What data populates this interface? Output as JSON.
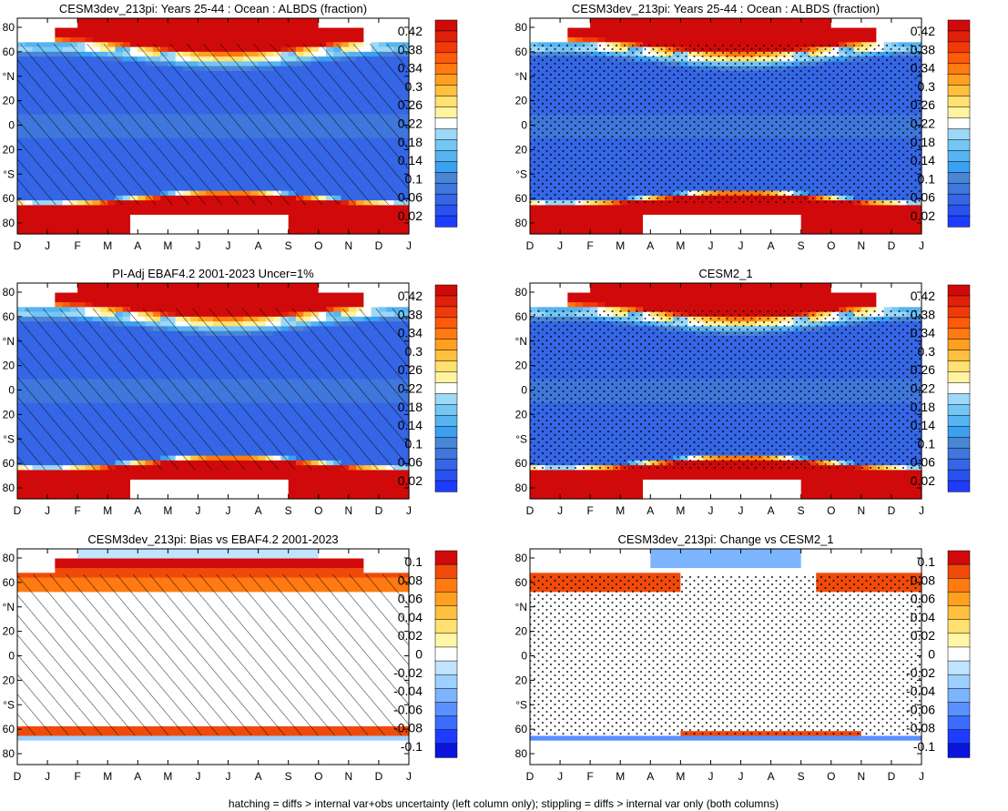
{
  "figure": {
    "footnote": "hatching = diffs > internal var+obs uncertainty (left column only); stippling = diffs > internal var only (both columns)"
  },
  "colors": {
    "abs_scale": [
      "#1e3cff",
      "#2a52f0",
      "#3566e6",
      "#3f77dc",
      "#4a86d6",
      "#3aa0f0",
      "#56b4f0",
      "#74c6f4",
      "#9dd8f8",
      "#ffffff",
      "#fff3a0",
      "#ffe070",
      "#ffc040",
      "#ffa020",
      "#ff7a10",
      "#ff5a0a",
      "#f03a0a",
      "#e0200a",
      "#d00a0a"
    ],
    "diff_scale": [
      "#0a14dc",
      "#1e3cff",
      "#3a6cff",
      "#5a90ff",
      "#7cb4ff",
      "#9ed0ff",
      "#c0e4ff",
      "#ffffff",
      "#fff6a8",
      "#ffe070",
      "#ffc040",
      "#ffa020",
      "#ff7a10",
      "#f04a0a",
      "#d00a0a"
    ]
  },
  "chart_data": [
    {
      "type": "heatmap",
      "title": "CESM3dev_213pi: Years 25-44 : Ocean : ALBDS (fraction)",
      "kind": "abs",
      "overlay": "hatch",
      "x_ticks": [
        "D",
        "J",
        "F",
        "M",
        "A",
        "M",
        "J",
        "J",
        "A",
        "S",
        "O",
        "N",
        "D",
        "J"
      ],
      "y_ticks": [
        "80",
        "60",
        "°N",
        "20",
        "0",
        "20",
        "°S",
        "60",
        "80"
      ],
      "colorbar_ticks": [
        "0.42",
        "0.38",
        "0.34",
        "0.3",
        "0.26",
        "0.22",
        "0.18",
        "0.14",
        "0.1",
        "0.06",
        "0.02"
      ],
      "colorbar_range": [
        0.0,
        0.44
      ],
      "description_values": {
        "tropics": 0.07,
        "subtropics": 0.06,
        "polar": 0.44
      }
    },
    {
      "type": "heatmap",
      "title": "CESM3dev_213pi: Years 25-44 : Ocean : ALBDS (fraction)",
      "kind": "abs",
      "overlay": "stipple",
      "x_ticks": [
        "D",
        "J",
        "F",
        "M",
        "A",
        "M",
        "J",
        "J",
        "A",
        "S",
        "O",
        "N",
        "D",
        "J"
      ],
      "y_ticks": [
        "80",
        "60",
        "°N",
        "20",
        "0",
        "20",
        "°S",
        "60",
        "80"
      ],
      "colorbar_ticks": [
        "0.42",
        "0.38",
        "0.34",
        "0.3",
        "0.26",
        "0.22",
        "0.18",
        "0.14",
        "0.1",
        "0.06",
        "0.02"
      ],
      "colorbar_range": [
        0.0,
        0.44
      ]
    },
    {
      "type": "heatmap",
      "title": "PI-Adj EBAF4.2 2001-2023 Uncer=1%",
      "kind": "abs",
      "overlay": "hatch",
      "x_ticks": [
        "D",
        "J",
        "F",
        "M",
        "A",
        "M",
        "J",
        "J",
        "A",
        "S",
        "O",
        "N",
        "D",
        "J"
      ],
      "y_ticks": [
        "80",
        "60",
        "°N",
        "20",
        "0",
        "20",
        "°S",
        "60",
        "80"
      ],
      "colorbar_ticks": [
        "0.42",
        "0.38",
        "0.34",
        "0.3",
        "0.26",
        "0.22",
        "0.18",
        "0.14",
        "0.1",
        "0.06",
        "0.02"
      ],
      "colorbar_range": [
        0.0,
        0.44
      ]
    },
    {
      "type": "heatmap",
      "title": "CESM2_1",
      "kind": "abs",
      "overlay": "stipple",
      "x_ticks": [
        "D",
        "J",
        "F",
        "M",
        "A",
        "M",
        "J",
        "J",
        "A",
        "S",
        "O",
        "N",
        "D",
        "J"
      ],
      "y_ticks": [
        "80",
        "60",
        "°N",
        "20",
        "0",
        "20",
        "°S",
        "60",
        "80"
      ],
      "colorbar_ticks": [
        "0.42",
        "0.38",
        "0.34",
        "0.3",
        "0.26",
        "0.22",
        "0.18",
        "0.14",
        "0.1",
        "0.06",
        "0.02"
      ],
      "colorbar_range": [
        0.0,
        0.44
      ]
    },
    {
      "type": "heatmap",
      "title": "CESM3dev_213pi: Bias vs EBAF4.2 2001-2023",
      "kind": "diff",
      "overlay": "hatch",
      "x_ticks": [
        "D",
        "J",
        "F",
        "M",
        "A",
        "M",
        "J",
        "J",
        "A",
        "S",
        "O",
        "N",
        "D",
        "J"
      ],
      "y_ticks": [
        "80",
        "60",
        "°N",
        "20",
        "0",
        "20",
        "°S",
        "60",
        "80"
      ],
      "colorbar_ticks": [
        "0.1",
        "0.08",
        "0.06",
        "0.04",
        "0.02",
        "0",
        "-0.02",
        "-0.04",
        "-0.06",
        "-0.08",
        "-0.1"
      ],
      "colorbar_range": [
        -0.11,
        0.11
      ]
    },
    {
      "type": "heatmap",
      "title": "CESM3dev_213pi: Change vs CESM2_1",
      "kind": "diff",
      "overlay": "stipple",
      "x_ticks": [
        "D",
        "J",
        "F",
        "M",
        "A",
        "M",
        "J",
        "J",
        "A",
        "S",
        "O",
        "N",
        "D",
        "J"
      ],
      "y_ticks": [
        "80",
        "60",
        "°N",
        "20",
        "0",
        "20",
        "°S",
        "60",
        "80"
      ],
      "colorbar_ticks": [
        "0.1",
        "0.08",
        "0.06",
        "0.04",
        "0.02",
        "0",
        "-0.02",
        "-0.04",
        "-0.06",
        "-0.08",
        "-0.1"
      ],
      "colorbar_range": [
        -0.11,
        0.11
      ]
    }
  ]
}
